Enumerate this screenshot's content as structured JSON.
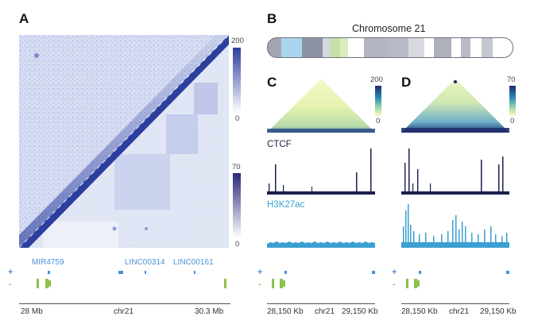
{
  "panels": {
    "a": {
      "letter": "A"
    },
    "b": {
      "letter": "B"
    },
    "c": {
      "letter": "C"
    },
    "d": {
      "letter": "D"
    }
  },
  "colorbars": {
    "a_top": {
      "max": "200",
      "min": "0"
    },
    "a_bottom": {
      "max": "70",
      "min": "0"
    },
    "c": {
      "max": "200",
      "min": "0"
    },
    "d": {
      "max": "70",
      "min": "0"
    }
  },
  "chromosome": {
    "title": "Chromosome 21"
  },
  "tracks": {
    "ctcf_label": "CTCF",
    "h3k27ac_label": "H3K27ac",
    "plus_strand": "+",
    "minus_strand": "-"
  },
  "genes": [
    "MIR4759",
    "LINC00314",
    "LINC00161"
  ],
  "axis_a": {
    "left": "28 Mb",
    "center": "chr21",
    "right": "30.3 Mb"
  },
  "axis_cd": {
    "left": "28,150 Kb",
    "center": "chr21",
    "right": "29,150 Kb"
  },
  "colors": {
    "navy": "#1a1f4d",
    "hic_blue": "#2c3e9e",
    "h3k27ac": "#3b9fd1",
    "gene_blue": "#4a90d9",
    "gene_green": "#8bc34a"
  }
}
